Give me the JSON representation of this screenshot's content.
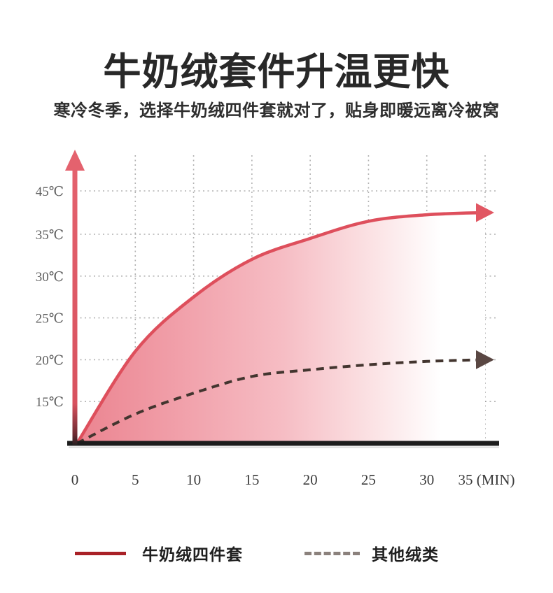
{
  "header": {
    "title": "牛奶绒套件升温更快",
    "subtitle": "寒冷冬季，选择牛奶绒四件套就对了，贴身即暖远离冷被窝"
  },
  "chart_data": {
    "type": "line",
    "x": [
      0,
      5,
      10,
      15,
      20,
      25,
      30,
      35
    ],
    "x_tick_labels": [
      "0",
      "5",
      "10",
      "15",
      "20",
      "25",
      "30",
      "35 (MIN)"
    ],
    "x_unit": "MIN",
    "y_ticks": [
      15,
      20,
      25,
      30,
      35,
      45
    ],
    "y_tick_labels": [
      "15℃",
      "20℃",
      "25℃",
      "30℃",
      "35℃",
      "45℃"
    ],
    "ylim": [
      10,
      47
    ],
    "grid": "dotted",
    "legend_position": "bottom",
    "series": [
      {
        "name": "牛奶绒四件套",
        "style": "solid",
        "arrow_end": true,
        "color": "#de4f5c",
        "arrow_color": "#e15763",
        "area_fill": "pink-gradient",
        "values": [
          10,
          21,
          27.5,
          32,
          34.5,
          38,
          39.5,
          40
        ]
      },
      {
        "name": "其他绒类",
        "style": "dashed",
        "arrow_end": true,
        "color": "#43352f",
        "arrow_color": "#5a4743",
        "area_fill": "none",
        "values": [
          10,
          13.5,
          16,
          18,
          18.8,
          19.4,
          19.8,
          20
        ]
      }
    ]
  },
  "legend": {
    "items": [
      {
        "label": "牛奶绒四件套",
        "swatch": "solid-line",
        "color": "#a92127"
      },
      {
        "label": "其他绒类",
        "swatch": "dashed-line",
        "color": "#8b817c"
      }
    ]
  },
  "colors": {
    "y_axis_arrow": "#e2626d",
    "x_axis": "#1d1d1d",
    "gridline": "#979797",
    "fill_start": "#eb8490",
    "fill_mid": "#f6bdc4",
    "fill_end": "#ffffff",
    "y_tick_text": "#5f5f5f",
    "x_tick_text": "#3a3a3a"
  }
}
